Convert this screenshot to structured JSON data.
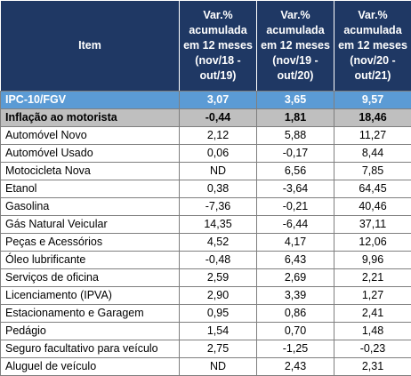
{
  "header": {
    "item": "Item",
    "col1": "Var.% acumulada em 12 meses (nov/18 - out/19)",
    "col2": "Var.% acumulada em 12 meses (nov/19 - out/20)",
    "col3": "Var.% acumulada em 12 meses (nov/20 - out/21)"
  },
  "rows": [
    {
      "item": "IPC-10/FGV",
      "v1": "3,07",
      "v2": "3,65",
      "v3": "9,57"
    },
    {
      "item": "Inflação ao motorista",
      "v1": "-0,44",
      "v2": "1,81",
      "v3": "18,46"
    },
    {
      "item": "Automóvel Novo",
      "v1": "2,12",
      "v2": "5,88",
      "v3": "11,27"
    },
    {
      "item": "Automóvel Usado",
      "v1": "0,06",
      "v2": "-0,17",
      "v3": "8,44"
    },
    {
      "item": "Motocicleta Nova",
      "v1": "ND",
      "v2": "6,56",
      "v3": "7,85"
    },
    {
      "item": "Etanol",
      "v1": "0,38",
      "v2": "-3,64",
      "v3": "64,45"
    },
    {
      "item": "Gasolina",
      "v1": "-7,36",
      "v2": "-0,21",
      "v3": "40,46"
    },
    {
      "item": "Gás Natural Veicular",
      "v1": "14,35",
      "v2": "-6,44",
      "v3": "37,11"
    },
    {
      "item": "Peças e Acessórios",
      "v1": "4,52",
      "v2": "4,17",
      "v3": "12,06"
    },
    {
      "item": "Óleo lubrificante",
      "v1": "-0,48",
      "v2": "6,43",
      "v3": "9,96"
    },
    {
      "item": "Serviços de oficina",
      "v1": "2,59",
      "v2": "2,69",
      "v3": "2,21"
    },
    {
      "item": "Licenciamento (IPVA)",
      "v1": "2,90",
      "v2": "3,39",
      "v3": "1,27"
    },
    {
      "item": "Estacionamento e Garagem",
      "v1": "0,95",
      "v2": "0,86",
      "v3": "2,41"
    },
    {
      "item": "Pedágio",
      "v1": "1,54",
      "v2": "0,70",
      "v3": "1,48"
    },
    {
      "item": "Seguro facultativo para veículo",
      "v1": "2,75",
      "v2": "-1,25",
      "v3": "-0,23"
    },
    {
      "item": "Aluguel de veículo",
      "v1": "ND",
      "v2": "2,43",
      "v3": "2,31"
    }
  ],
  "colors": {
    "header_bg": "#1f3864",
    "ipc_bg": "#5b9bd5",
    "motorista_bg": "#bfbfbf"
  }
}
